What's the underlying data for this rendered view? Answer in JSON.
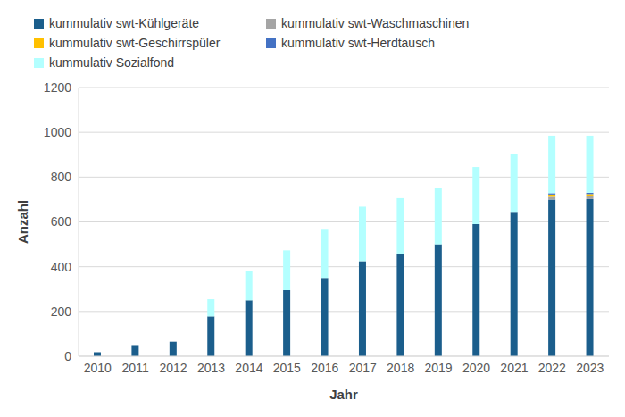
{
  "chart_data": {
    "type": "bar",
    "stacked": true,
    "grid": true,
    "legend": "top",
    "x_label": "Jahr",
    "y_label": "Anzahl",
    "categories": [
      "2010",
      "2011",
      "2012",
      "2013",
      "2014",
      "2015",
      "2016",
      "2017",
      "2018",
      "2019",
      "2020",
      "2021",
      "2022",
      "2023"
    ],
    "ylim": [
      0,
      1200
    ],
    "yticks": [
      0,
      200,
      400,
      600,
      800,
      1000,
      1200
    ],
    "series": [
      {
        "name": "kummulativ swt-Kühlgeräte",
        "color": "#1b5e8c",
        "values": [
          18,
          50,
          65,
          178,
          250,
          295,
          350,
          425,
          455,
          500,
          590,
          645,
          700,
          702
        ]
      },
      {
        "name": "kummulativ swt-Waschmaschinen",
        "color": "#a5a5a5",
        "values": [
          0,
          0,
          0,
          0,
          0,
          0,
          0,
          0,
          0,
          0,
          0,
          0,
          12,
          12
        ]
      },
      {
        "name": "kummulativ swt-Geschirrspüler",
        "color": "#ffc000",
        "values": [
          0,
          0,
          0,
          0,
          0,
          0,
          0,
          0,
          0,
          0,
          0,
          0,
          10,
          10
        ]
      },
      {
        "name": "kummulativ swt-Herdtausch",
        "color": "#4472c4",
        "values": [
          0,
          0,
          0,
          0,
          0,
          0,
          0,
          0,
          0,
          0,
          0,
          0,
          6,
          6
        ]
      },
      {
        "name": "kummulativ Sozialfond",
        "color": "#b3ffff",
        "values": [
          0,
          0,
          0,
          77,
          130,
          178,
          215,
          243,
          251,
          250,
          255,
          257,
          257,
          255
        ]
      }
    ]
  }
}
